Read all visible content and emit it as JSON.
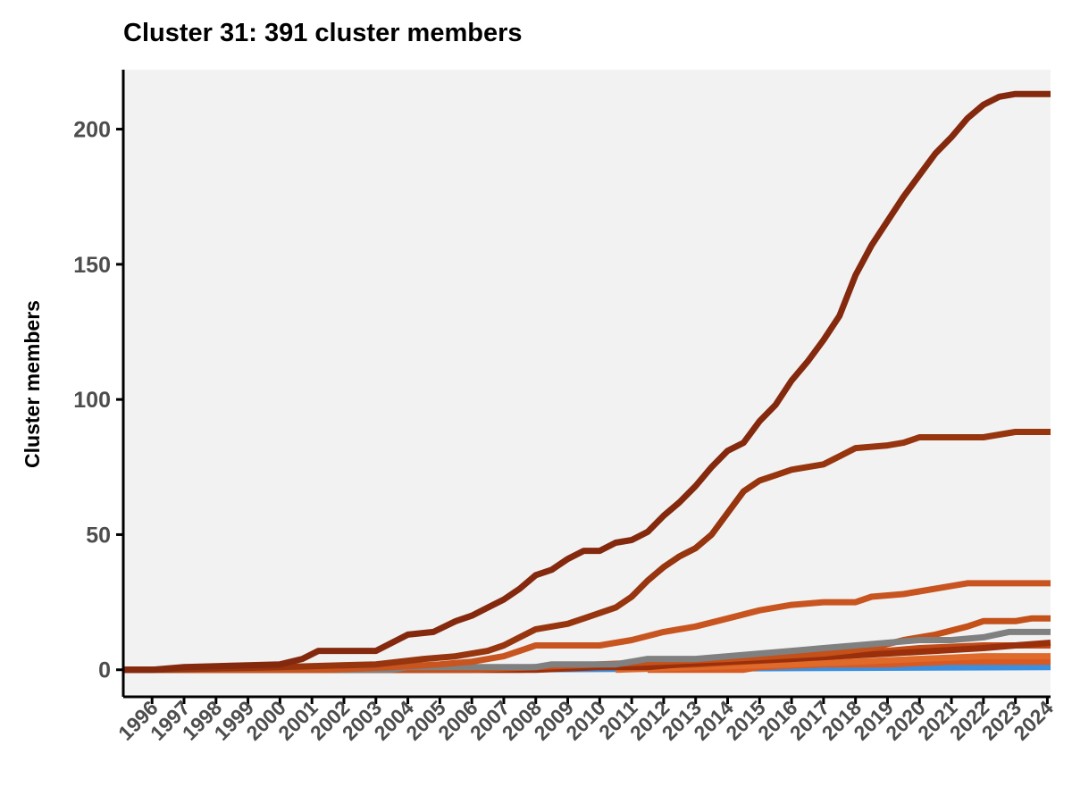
{
  "chart_data": {
    "type": "line",
    "title": "Cluster 31: 391 cluster members",
    "xlabel": "",
    "ylabel": "Cluster members",
    "xlim": [
      1995.1,
      2024.1
    ],
    "ylim": [
      -10,
      222
    ],
    "x_ticks": [
      1996,
      1997,
      1998,
      1999,
      2000,
      2001,
      2002,
      2003,
      2004,
      2005,
      2006,
      2007,
      2008,
      2009,
      2010,
      2011,
      2012,
      2013,
      2014,
      2015,
      2016,
      2017,
      2018,
      2019,
      2020,
      2021,
      2022,
      2023,
      2024
    ],
    "y_ticks": [
      0,
      50,
      100,
      150,
      200
    ],
    "grid": false,
    "legend": "none",
    "background": "#f2f2f2",
    "series": [
      {
        "color": "#3a8fe0",
        "points": [
          [
            1995.1,
            0
          ],
          [
            2003.3,
            0
          ],
          [
            2004.5,
            0
          ],
          [
            2024.1,
            1
          ]
        ]
      },
      {
        "color": "#d85a22",
        "points": [
          [
            2011.5,
            0
          ],
          [
            2014.5,
            0
          ],
          [
            2015.0,
            1
          ],
          [
            2017.0,
            2
          ],
          [
            2019.0,
            2
          ],
          [
            2021.0,
            3
          ],
          [
            2024.1,
            3
          ]
        ]
      },
      {
        "color": "#e06a2a",
        "points": [
          [
            2010.5,
            0
          ],
          [
            2013.0,
            1
          ],
          [
            2016.0,
            2
          ],
          [
            2018.0,
            3
          ],
          [
            2020.0,
            4
          ],
          [
            2022.0,
            5
          ],
          [
            2024.1,
            5
          ]
        ]
      },
      {
        "color": "#c24a17",
        "points": [
          [
            1995.1,
            0
          ],
          [
            2007.5,
            0
          ],
          [
            2010.0,
            1
          ],
          [
            2013.0,
            2
          ],
          [
            2016.0,
            4
          ],
          [
            2018.0,
            6
          ],
          [
            2020.0,
            8
          ],
          [
            2022.0,
            9
          ],
          [
            2024.1,
            9
          ]
        ]
      },
      {
        "color": "#9a2f0c",
        "points": [
          [
            1995.1,
            0
          ],
          [
            2008.0,
            0
          ],
          [
            2010.0,
            1
          ],
          [
            2011.5,
            1
          ],
          [
            2012.5,
            2
          ],
          [
            2014.0,
            3
          ],
          [
            2016.0,
            4
          ],
          [
            2017.5,
            5
          ],
          [
            2019.0,
            6
          ],
          [
            2020.5,
            7
          ],
          [
            2022.0,
            8
          ],
          [
            2023.0,
            9
          ],
          [
            2024.1,
            10
          ]
        ]
      },
      {
        "color": "#c4501a",
        "points": [
          [
            1995.1,
            0
          ],
          [
            2006.0,
            0
          ],
          [
            2008.0,
            1
          ],
          [
            2010.0,
            2
          ],
          [
            2012.0,
            3
          ],
          [
            2014.0,
            4
          ],
          [
            2015.5,
            5
          ],
          [
            2017.0,
            6
          ],
          [
            2018.5,
            8
          ],
          [
            2019.5,
            11
          ],
          [
            2020.5,
            13
          ],
          [
            2021.5,
            16
          ],
          [
            2022.0,
            18
          ],
          [
            2023.0,
            18
          ],
          [
            2023.5,
            19
          ],
          [
            2024.1,
            19
          ]
        ]
      },
      {
        "color": "#808080",
        "points": [
          [
            1995.1,
            0
          ],
          [
            2003.5,
            0
          ],
          [
            2004.0,
            1
          ],
          [
            2008.0,
            1
          ],
          [
            2008.5,
            2
          ],
          [
            2010.5,
            2
          ],
          [
            2011.5,
            4
          ],
          [
            2013.0,
            4
          ],
          [
            2014.0,
            5
          ],
          [
            2015.0,
            6
          ],
          [
            2016.0,
            7
          ],
          [
            2017.0,
            8
          ],
          [
            2018.0,
            9
          ],
          [
            2019.0,
            10
          ],
          [
            2020.0,
            11
          ],
          [
            2021.0,
            11
          ],
          [
            2022.0,
            12
          ],
          [
            2022.8,
            14
          ],
          [
            2024.1,
            14
          ]
        ]
      },
      {
        "color": "#c85520",
        "points": [
          [
            1995.1,
            0
          ],
          [
            2001.5,
            0
          ],
          [
            2003.5,
            1
          ],
          [
            2005.0,
            2
          ],
          [
            2006.0,
            3
          ],
          [
            2007.0,
            5
          ],
          [
            2007.5,
            7
          ],
          [
            2008.0,
            9
          ],
          [
            2010.0,
            9
          ],
          [
            2011.0,
            11
          ],
          [
            2012.0,
            14
          ],
          [
            2013.0,
            16
          ],
          [
            2014.0,
            19
          ],
          [
            2015.0,
            22
          ],
          [
            2016.0,
            24
          ],
          [
            2017.0,
            25
          ],
          [
            2018.0,
            25
          ],
          [
            2018.5,
            27
          ],
          [
            2019.5,
            28
          ],
          [
            2020.0,
            29
          ],
          [
            2021.0,
            31
          ],
          [
            2021.5,
            32
          ],
          [
            2024.1,
            32
          ]
        ]
      },
      {
        "color": "#96350e",
        "points": [
          [
            1995.1,
            0
          ],
          [
            1996.0,
            0
          ],
          [
            2000.0,
            1
          ],
          [
            2003.0,
            2
          ],
          [
            2004.5,
            4
          ],
          [
            2005.5,
            5
          ],
          [
            2006.5,
            7
          ],
          [
            2007.0,
            9
          ],
          [
            2007.5,
            12
          ],
          [
            2008.0,
            15
          ],
          [
            2009.0,
            17
          ],
          [
            2009.5,
            19
          ],
          [
            2010.0,
            21
          ],
          [
            2010.5,
            23
          ],
          [
            2011.0,
            27
          ],
          [
            2011.5,
            33
          ],
          [
            2012.0,
            38
          ],
          [
            2012.5,
            42
          ],
          [
            2013.0,
            45
          ],
          [
            2013.5,
            50
          ],
          [
            2014.0,
            58
          ],
          [
            2014.5,
            66
          ],
          [
            2015.0,
            70
          ],
          [
            2015.5,
            72
          ],
          [
            2016.0,
            74
          ],
          [
            2017.0,
            76
          ],
          [
            2017.5,
            79
          ],
          [
            2018.0,
            82
          ],
          [
            2019.0,
            83
          ],
          [
            2019.5,
            84
          ],
          [
            2020.0,
            86
          ],
          [
            2021.0,
            86
          ],
          [
            2022.0,
            86
          ],
          [
            2023.0,
            88
          ],
          [
            2024.1,
            88
          ]
        ]
      },
      {
        "color": "#84290e",
        "points": [
          [
            1995.1,
            0
          ],
          [
            1996.0,
            0
          ],
          [
            1997.0,
            1
          ],
          [
            2000.0,
            2
          ],
          [
            2000.7,
            4
          ],
          [
            2001.2,
            7
          ],
          [
            2002.0,
            7
          ],
          [
            2003.0,
            7
          ],
          [
            2003.5,
            10
          ],
          [
            2004.0,
            13
          ],
          [
            2004.8,
            14
          ],
          [
            2005.5,
            18
          ],
          [
            2006.0,
            20
          ],
          [
            2006.5,
            23
          ],
          [
            2007.0,
            26
          ],
          [
            2007.5,
            30
          ],
          [
            2008.0,
            35
          ],
          [
            2008.5,
            37
          ],
          [
            2009.0,
            41
          ],
          [
            2009.5,
            44
          ],
          [
            2010.0,
            44
          ],
          [
            2010.5,
            47
          ],
          [
            2011.0,
            48
          ],
          [
            2011.5,
            51
          ],
          [
            2012.0,
            57
          ],
          [
            2012.5,
            62
          ],
          [
            2013.0,
            68
          ],
          [
            2013.5,
            75
          ],
          [
            2014.0,
            81
          ],
          [
            2014.5,
            84
          ],
          [
            2015.0,
            92
          ],
          [
            2015.5,
            98
          ],
          [
            2016.0,
            107
          ],
          [
            2016.5,
            114
          ],
          [
            2017.0,
            122
          ],
          [
            2017.5,
            131
          ],
          [
            2018.0,
            146
          ],
          [
            2018.5,
            157
          ],
          [
            2019.0,
            166
          ],
          [
            2019.5,
            175
          ],
          [
            2020.0,
            183
          ],
          [
            2020.5,
            191
          ],
          [
            2021.0,
            197
          ],
          [
            2021.5,
            204
          ],
          [
            2022.0,
            209
          ],
          [
            2022.5,
            212
          ],
          [
            2023.0,
            213
          ],
          [
            2024.1,
            213
          ]
        ]
      }
    ]
  }
}
